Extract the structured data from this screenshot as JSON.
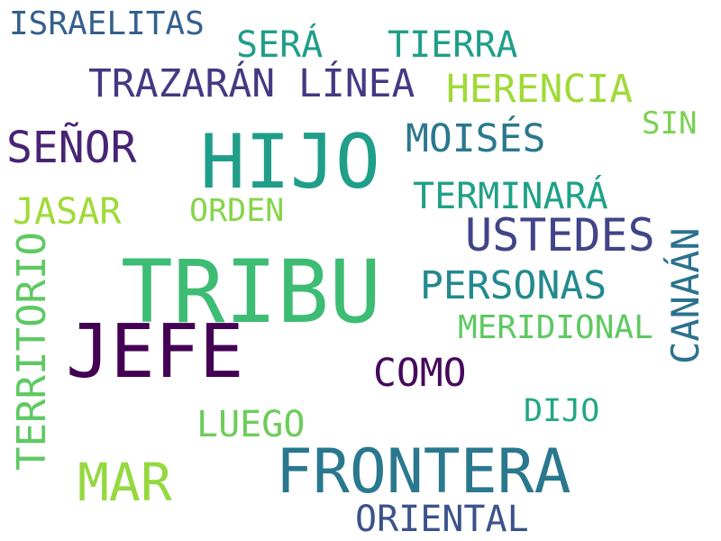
{
  "words": {
    "israelitas": {
      "text": "ISRAELITAS",
      "color": "#355f8d"
    },
    "sera": {
      "text": "SERÁ",
      "color": "#1f9e89"
    },
    "tierra": {
      "text": "TIERRA",
      "color": "#1f9e89"
    },
    "trazaran_linea": {
      "text": "TRAZARÁN LÍNEA",
      "color": "#443983"
    },
    "herencia": {
      "text": "HERENCIA",
      "color": "#a0da39"
    },
    "hijo": {
      "text": "HIJO",
      "color": "#1f9e89"
    },
    "moises": {
      "text": "MOISÉS",
      "color": "#2a788e"
    },
    "sin": {
      "text": "SIN",
      "color": "#7ad151"
    },
    "senor": {
      "text": "SEÑOR",
      "color": "#482475"
    },
    "terminara": {
      "text": "TERMINARÁ",
      "color": "#1fa187"
    },
    "jasar": {
      "text": "JASAR",
      "color": "#a0da39"
    },
    "orden": {
      "text": "ORDEN",
      "color": "#86d549"
    },
    "ustedes": {
      "text": "USTEDES",
      "color": "#414487"
    },
    "canaan": {
      "text": "CANAÁN",
      "color": "#2c728e"
    },
    "territorio": {
      "text": "TERRITORIO",
      "color": "#5ec962"
    },
    "tribu": {
      "text": "TRIBU",
      "color": "#3dbc74"
    },
    "personas": {
      "text": "PERSONAS",
      "color": "#23898e"
    },
    "meridional": {
      "text": "MERIDIONAL",
      "color": "#5ec962"
    },
    "jefe": {
      "text": "JEFE",
      "color": "#440154"
    },
    "como": {
      "text": "COMO",
      "color": "#46085c"
    },
    "dijo": {
      "text": "DIJO",
      "color": "#22a884"
    },
    "luego": {
      "text": "LUEGO",
      "color": "#6ccd5a"
    },
    "mar": {
      "text": "MAR",
      "color": "#95d840"
    },
    "frontera": {
      "text": "FRONTERA",
      "color": "#2a788e"
    },
    "oriental": {
      "text": "ORIENTAL",
      "color": "#3b528b"
    }
  }
}
